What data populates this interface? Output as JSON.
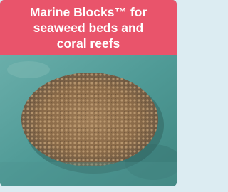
{
  "card": {
    "title_lines": [
      "Marine Blocks™ for",
      "seaweed beds and",
      "coral reefs"
    ]
  }
}
